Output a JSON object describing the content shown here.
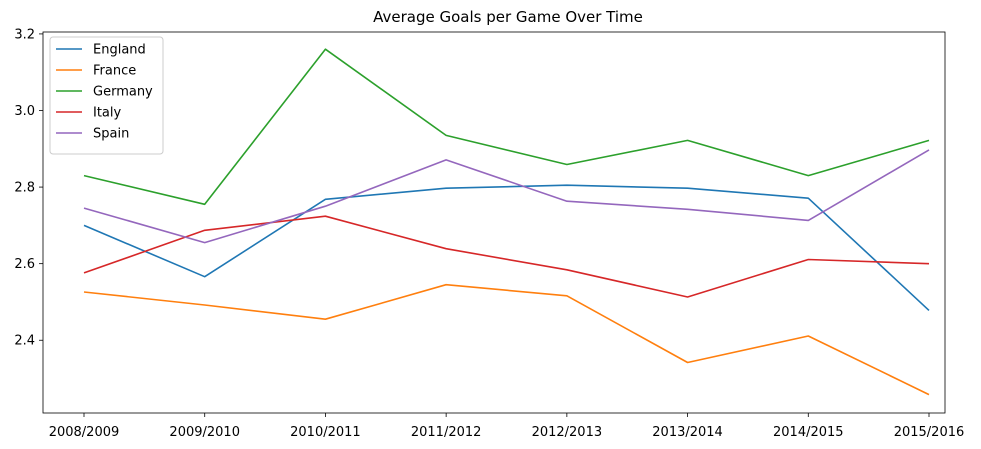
{
  "chart_data": {
    "type": "line",
    "title": "Average Goals per Game Over Time",
    "xlabel": "",
    "ylabel": "",
    "categories": [
      "2008/2009",
      "2009/2010",
      "2010/2011",
      "2011/2012",
      "2012/2013",
      "2013/2014",
      "2014/2015",
      "2015/2016"
    ],
    "yticks": [
      2.4,
      2.6,
      2.8,
      3.0,
      3.2
    ],
    "ytick_labels": [
      "2.4",
      "2.6",
      "2.8",
      "3.0",
      "3.2"
    ],
    "ylim": [
      2.21,
      3.205
    ],
    "grid": false,
    "legend_position": "upper-left",
    "series": [
      {
        "name": "England",
        "color": "#1f77b4",
        "values": [
          2.7,
          2.566,
          2.768,
          2.797,
          2.805,
          2.797,
          2.771,
          2.478
        ]
      },
      {
        "name": "France",
        "color": "#ff7f0e",
        "values": [
          2.526,
          2.492,
          2.455,
          2.545,
          2.516,
          2.342,
          2.411,
          2.258
        ]
      },
      {
        "name": "Germany",
        "color": "#2ca02c",
        "values": [
          2.83,
          2.755,
          3.16,
          2.935,
          2.859,
          2.922,
          2.83,
          2.922
        ]
      },
      {
        "name": "Italy",
        "color": "#d62728",
        "values": [
          2.576,
          2.687,
          2.724,
          2.639,
          2.584,
          2.513,
          2.611,
          2.6
        ]
      },
      {
        "name": "Spain",
        "color": "#9467bd",
        "values": [
          2.745,
          2.655,
          2.75,
          2.871,
          2.763,
          2.742,
          2.713,
          2.897
        ]
      }
    ]
  }
}
